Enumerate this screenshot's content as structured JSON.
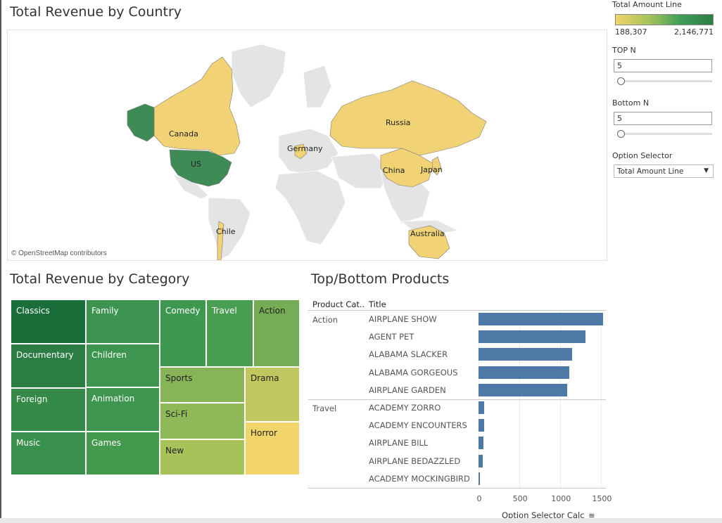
{
  "map_panel": {
    "title": "Total Revenue by Country",
    "attribution": "© OpenStreetMap contributors",
    "countries": [
      {
        "name": "US",
        "color": "#3e8b55"
      },
      {
        "name": "Canada",
        "color": "#f1d275"
      },
      {
        "name": "Russia",
        "color": "#f1d275"
      },
      {
        "name": "China",
        "color": "#f1d275"
      },
      {
        "name": "Japan",
        "color": "#f1d275"
      },
      {
        "name": "Germany",
        "color": "#f1d275"
      },
      {
        "name": "Chile",
        "color": "#f1d275"
      },
      {
        "name": "Australia",
        "color": "#f1d275"
      }
    ]
  },
  "legend": {
    "title": "Total Amount Line",
    "min": "188,307",
    "max": "2,146,771",
    "colors": [
      "#f1d46a",
      "#2e7b48"
    ]
  },
  "controls": {
    "top_n": {
      "label": "TOP N",
      "value": "5"
    },
    "bottom_n": {
      "label": "Bottom N",
      "value": "5"
    },
    "option_selector": {
      "label": "Option Selector",
      "value": "Total Amount Line"
    }
  },
  "category_panel": {
    "title": "Total Revenue by Category",
    "tiles": [
      {
        "name": "Classics",
        "color": "#1a6e3a"
      },
      {
        "name": "Family",
        "color": "#3c9450"
      },
      {
        "name": "Comedy",
        "color": "#3f9850"
      },
      {
        "name": "Travel",
        "color": "#4a9e52"
      },
      {
        "name": "Action",
        "color": "#75ad56"
      },
      {
        "name": "Documentary",
        "color": "#2b7d43"
      },
      {
        "name": "Children",
        "color": "#3d954f"
      },
      {
        "name": "Foreign",
        "color": "#358a48"
      },
      {
        "name": "Animation",
        "color": "#3e9650"
      },
      {
        "name": "Music",
        "color": "#3a914d"
      },
      {
        "name": "Games",
        "color": "#44994f"
      },
      {
        "name": "Sports",
        "color": "#86b457"
      },
      {
        "name": "Sci-Fi",
        "color": "#8fb858"
      },
      {
        "name": "New",
        "color": "#a8c25a"
      },
      {
        "name": "Drama",
        "color": "#c2c65f"
      },
      {
        "name": "Horror",
        "color": "#f1d46a"
      }
    ]
  },
  "products_panel": {
    "title": "Top/Bottom Products",
    "col_category": "Product Cat..",
    "col_title": "Title",
    "axis_title": "Option Selector Calc",
    "ticks": [
      "0",
      "500",
      "1000",
      "1500"
    ]
  },
  "chart_data": {
    "type": "bar",
    "orientation": "horizontal",
    "xlim": [
      0,
      1600
    ],
    "xlabel": "Option Selector Calc",
    "groups": [
      {
        "category": "Action",
        "items": [
          {
            "title": "AIRPLANE SHOW",
            "value": 1520
          },
          {
            "title": "AGENT PET",
            "value": 1310
          },
          {
            "title": "ALABAMA SLACKER",
            "value": 1140
          },
          {
            "title": "ALABAMA GORGEOUS",
            "value": 1110
          },
          {
            "title": "AIRPLANE GARDEN",
            "value": 1080
          }
        ]
      },
      {
        "category": "Travel",
        "items": [
          {
            "title": "ACADEMY ZORRO",
            "value": 70
          },
          {
            "title": "ACADEMY ENCOUNTERS",
            "value": 65
          },
          {
            "title": "AIRPLANE BILL",
            "value": 62
          },
          {
            "title": "AIRPLANE BEDAZZLED",
            "value": 55
          },
          {
            "title": "ACADEMY MOCKINGBIRD",
            "value": 15
          }
        ]
      }
    ]
  }
}
